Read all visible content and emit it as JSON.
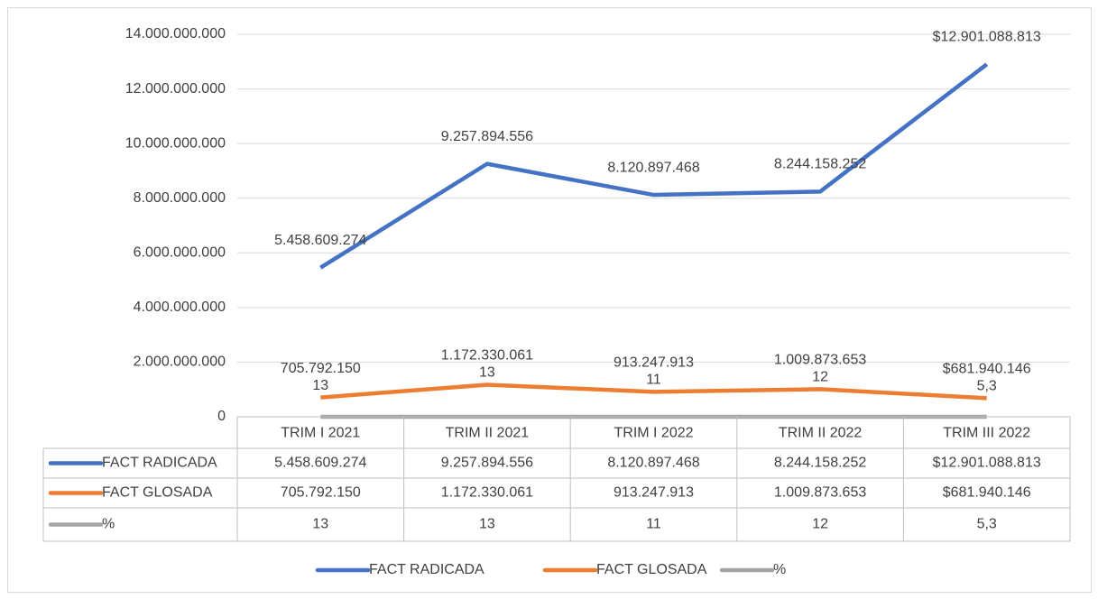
{
  "chart_data": {
    "type": "line",
    "categories": [
      "TRIM I 2021",
      "TRIM II 2021",
      "TRIM I 2022",
      "TRIM II 2022",
      "TRIM III 2022"
    ],
    "series": [
      {
        "name": "FACT RADICADA",
        "color": "#4472c4",
        "values": [
          5458609274,
          9257894556,
          8120897468,
          8244158252,
          12901088813
        ],
        "value_labels": [
          "5.458.609.274",
          "9.257.894.556",
          "8.120.897.468",
          "8.244.158.252",
          "$12.901.088.813"
        ]
      },
      {
        "name": "FACT GLOSADA",
        "color": "#ed7d31",
        "values": [
          705792150,
          1172330061,
          913247913,
          1009873653,
          681940146
        ],
        "value_labels": [
          "705.792.150",
          "1.172.330.061",
          "913.247.913",
          "1.009.873.653",
          "$681.940.146"
        ]
      },
      {
        "name": "%",
        "color": "#a5a5a5",
        "values": [
          13,
          13,
          11,
          12,
          5.3
        ],
        "value_labels": [
          "13",
          "13",
          "11",
          "12",
          "5,3"
        ]
      }
    ],
    "ylim": [
      0,
      14000000000
    ],
    "yticks": [
      0,
      {
        "value": 2000000000,
        "label": "2.000.000.000"
      },
      {
        "value": 4000000000,
        "label": "4.000.000.000"
      },
      {
        "value": 6000000000,
        "label": "6.000.000.000"
      },
      {
        "value": 8000000000,
        "label": "8.000.000.000"
      },
      {
        "value": 10000000000,
        "label": "10.000.000.000"
      },
      {
        "value": 12000000000,
        "label": "12.000.000.000"
      },
      {
        "value": 14000000000,
        "label": "14.000.000.000"
      }
    ],
    "grid": true,
    "data_table": true,
    "legend": "bottom"
  }
}
